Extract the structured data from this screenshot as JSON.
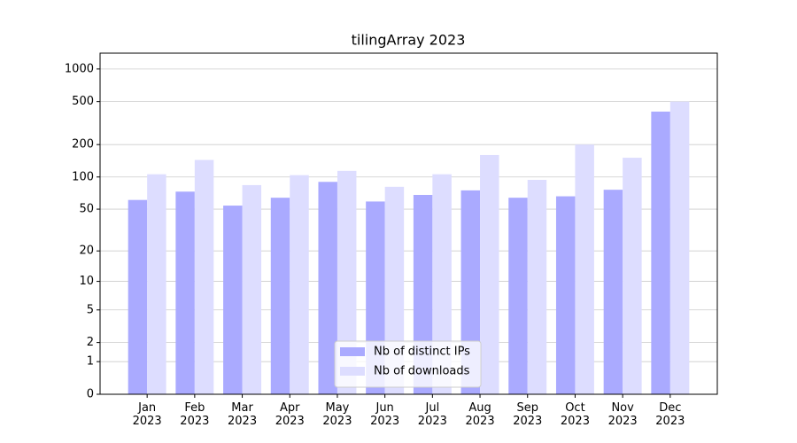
{
  "chart_data": {
    "type": "bar",
    "title": "tilingArray 2023",
    "categories": [
      "Jan\n2023",
      "Feb\n2023",
      "Mar\n2023",
      "Apr\n2023",
      "May\n2023",
      "Jun\n2023",
      "Jul\n2023",
      "Aug\n2023",
      "Sep\n2023",
      "Oct\n2023",
      "Nov\n2023",
      "Dec\n2023"
    ],
    "series": [
      {
        "name": "Nb of distinct IPs",
        "color": "#aaaaff",
        "values": [
          61,
          73,
          54,
          64,
          90,
          59,
          68,
          75,
          64,
          66,
          76,
          404
        ]
      },
      {
        "name": "Nb of downloads",
        "color": "#ddddff",
        "values": [
          106,
          144,
          84,
          104,
          114,
          81,
          106,
          160,
          94,
          200,
          151,
          500
        ]
      }
    ],
    "scale": "log1p",
    "ylim": [
      0,
      1400
    ],
    "yticks": [
      0,
      1,
      2,
      5,
      10,
      20,
      50,
      100,
      200,
      500,
      1000
    ],
    "grid": true,
    "legend": "lower center"
  }
}
